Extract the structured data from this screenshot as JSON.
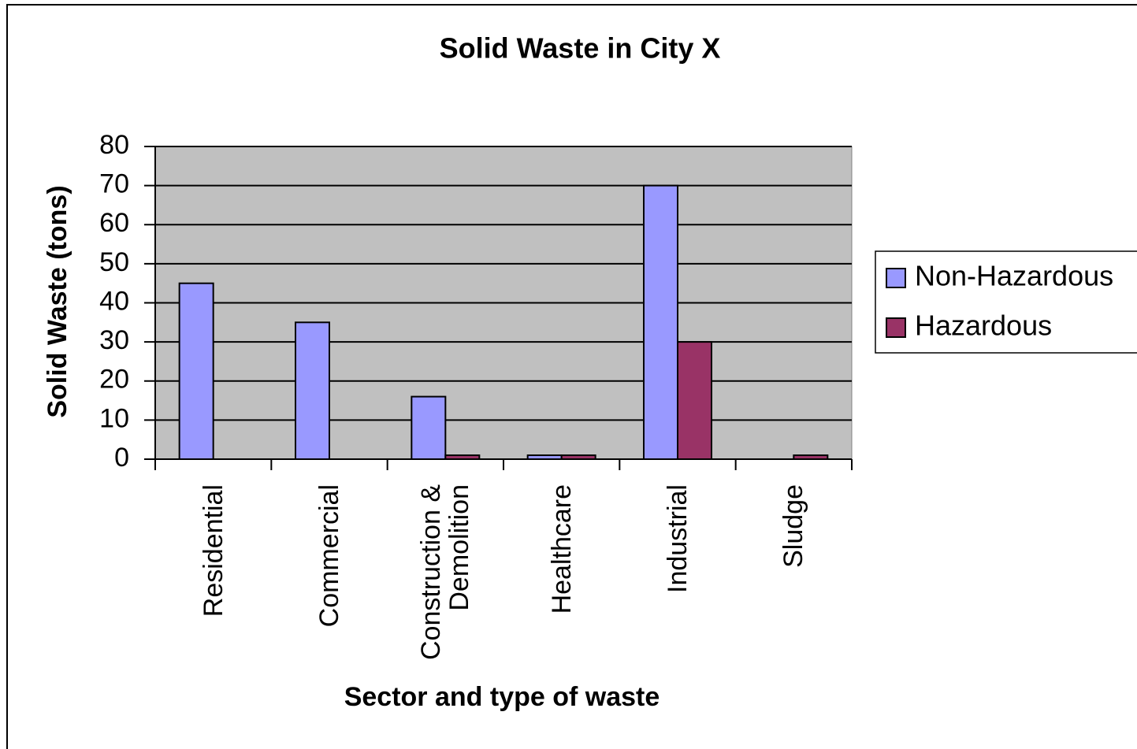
{
  "chart_data": {
    "type": "bar",
    "title": "Solid Waste in City X",
    "x_label": "Sector and type of waste",
    "y_label": "Solid Waste (tons)",
    "categories": [
      "Residential",
      "Commercial",
      "Construction & Demolition",
      "Healthcare",
      "Industrial",
      "Sludge"
    ],
    "series": [
      {
        "name": "Non-Hazardous",
        "color": "#9999ff",
        "values": [
          45,
          35,
          16,
          1,
          70,
          0
        ]
      },
      {
        "name": "Hazardous",
        "color": "#993366",
        "values": [
          0,
          0,
          1,
          1,
          30,
          1
        ]
      }
    ],
    "ylim": [
      0,
      80
    ],
    "yticks": [
      0,
      10,
      20,
      30,
      40,
      50,
      60,
      70,
      80
    ],
    "grid": true,
    "legend": "right"
  }
}
